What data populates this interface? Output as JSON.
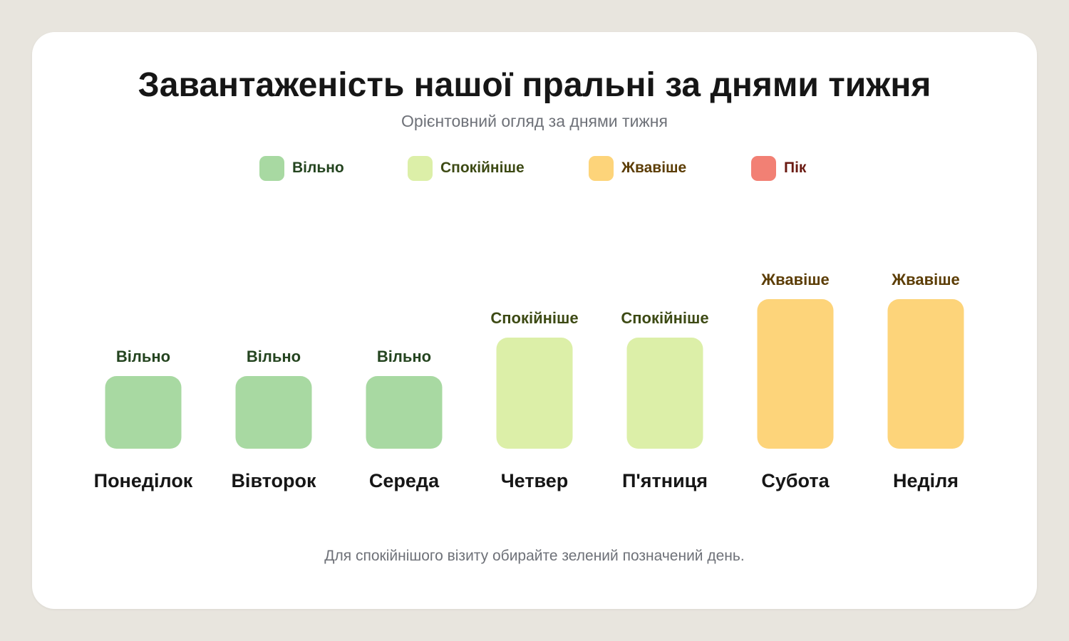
{
  "title": "Завантаженість нашої пральні за днями тижня",
  "subtitle": "Орієнтовний огляд за днями тижня",
  "footer_note": "Для спокійнішого візиту обирайте зелений позначений день.",
  "legend": [
    {
      "label": "Вільно",
      "color": "#a8d9a2",
      "text_color": "#24441f"
    },
    {
      "label": "Спокійніше",
      "color": "#dcefa8",
      "text_color": "#3d4a14"
    },
    {
      "label": "Жвавіше",
      "color": "#fdd47a",
      "text_color": "#5c3d05"
    },
    {
      "label": "Пік",
      "color": "#f28074",
      "text_color": "#6a1a12"
    }
  ],
  "chart_data": {
    "type": "bar",
    "categories": [
      "Понеділок",
      "Вівторок",
      "Середа",
      "Четвер",
      "П'ятниця",
      "Субота",
      "Неділя"
    ],
    "values": [
      1,
      1,
      1,
      2,
      2,
      3,
      3
    ],
    "value_labels": [
      "Вільно",
      "Вільно",
      "Вільно",
      "Спокійніше",
      "Спокійніше",
      "Жвавіше",
      "Жвавіше"
    ],
    "levels": [
      "Вільно",
      "Спокійніше",
      "Жвавіше",
      "Пік"
    ],
    "ylim": [
      0,
      4
    ],
    "title": "Завантаженість нашої пральні за днями тижня",
    "subtitle": "Орієнтовний огляд за днями тижня",
    "xlabel": "",
    "ylabel": "",
    "grid": false,
    "legend_position": "top"
  }
}
